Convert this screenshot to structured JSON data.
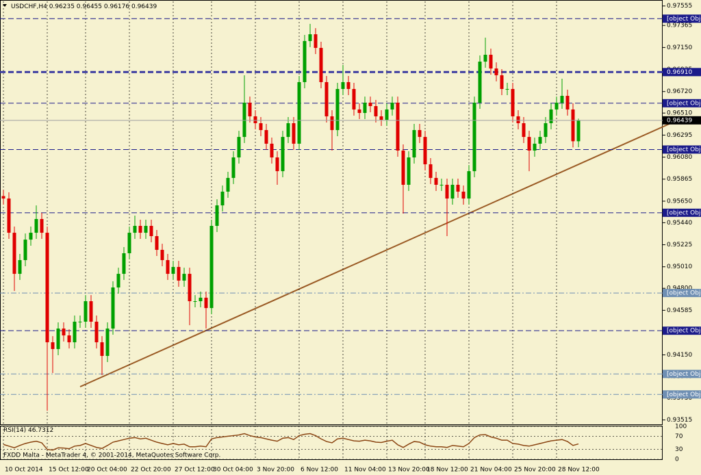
{
  "chart_data": {
    "type": "candlestick",
    "symbol": "USDCHF,H4",
    "categories": [
      "10 Oct 2014",
      null,
      null,
      null,
      null,
      null,
      null,
      null,
      "15 Oct 12:00",
      null,
      null,
      null,
      null,
      null,
      null,
      "20 Oct 04:00",
      null,
      null,
      null,
      null,
      null,
      null,
      null,
      "22 Oct 20:00",
      null,
      null,
      null,
      null,
      null,
      null,
      null,
      "27 Oct 12:00",
      null,
      null,
      null,
      null,
      null,
      null,
      "30 Oct 04:00",
      null,
      null,
      null,
      null,
      null,
      null,
      null,
      "3 Nov 20:00",
      null,
      null,
      null,
      null,
      null,
      null,
      null,
      "6 Nov 12:00",
      null,
      null,
      null,
      null,
      null,
      null,
      null,
      "11 Nov 04:00",
      null,
      null,
      null,
      null,
      null,
      null,
      null,
      "13 Nov 20:00",
      null,
      null,
      null,
      null,
      null,
      null,
      "18 Nov 12:00",
      null,
      null,
      null,
      null,
      null,
      null,
      null,
      "21 Nov 04:00",
      null,
      null,
      null,
      null,
      null,
      null,
      null,
      "25 Nov 20:00",
      null,
      null,
      null,
      null,
      null,
      null,
      null,
      "28 Nov 12:00",
      null,
      null,
      null,
      null
    ],
    "open": [
      0.957,
      0.95676,
      0.95342,
      0.94941,
      0.95075,
      0.95275,
      0.95342,
      0.95476,
      0.95342,
      0.94273,
      0.94207,
      0.94407,
      0.9434,
      0.94273,
      0.94474,
      0.94474,
      0.94674,
      0.94474,
      0.94273,
      0.9414,
      0.94407,
      0.94808,
      0.94941,
      0.95142,
      0.95342,
      0.95409,
      0.95342,
      0.95409,
      0.95309,
      0.95175,
      0.95075,
      0.94941,
      0.95008,
      0.94875,
      0.94941,
      0.94674,
      0.94674,
      0.94708,
      0.94607,
      0.95409,
      0.95609,
      0.95743,
      0.95877,
      0.96077,
      0.96277,
      0.96611,
      0.96478,
      0.96411,
      0.96344,
      0.96211,
      0.96077,
      0.95943,
      0.96277,
      0.96411,
      0.96211,
      0.96812,
      0.97213,
      0.97279,
      0.97146,
      0.96812,
      0.96478,
      0.96344,
      0.96745,
      0.96812,
      0.96745,
      0.96545,
      0.96511,
      0.96611,
      0.96578,
      0.96478,
      0.96444,
      0.96545,
      0.96611,
      0.96144,
      0.9581,
      0.96077,
      0.96344,
      0.96277,
      0.9601,
      0.95877,
      0.9581,
      0.9581,
      0.95676,
      0.9581,
      0.95743,
      0.95676,
      0.95943,
      0.96611,
      0.97012,
      0.97079,
      0.96945,
      0.96879,
      0.96745,
      0.96745,
      0.96478,
      0.96411,
      0.96277,
      0.96144,
      0.96211,
      0.96277,
      0.96411,
      0.96545,
      0.96611,
      0.96678,
      0.96545,
      0.96235
    ],
    "high": [
      0.9576,
      0.95736,
      0.95402,
      0.95135,
      0.95335,
      0.95402,
      0.95609,
      0.95536,
      0.95402,
      0.94333,
      0.94467,
      0.94467,
      0.944,
      0.94534,
      0.94534,
      0.94734,
      0.94734,
      0.94534,
      0.94333,
      0.94467,
      0.94868,
      0.95001,
      0.95202,
      0.95402,
      0.95509,
      0.95469,
      0.95469,
      0.95469,
      0.95369,
      0.95235,
      0.95135,
      0.95068,
      0.95068,
      0.95001,
      0.95001,
      0.94734,
      0.94768,
      0.94768,
      0.95469,
      0.95669,
      0.95803,
      0.95937,
      0.96137,
      0.96337,
      0.96879,
      0.96671,
      0.96538,
      0.96471,
      0.96404,
      0.96271,
      0.96137,
      0.96337,
      0.96471,
      0.96471,
      0.96872,
      0.97273,
      0.9738,
      0.97339,
      0.97206,
      0.96872,
      0.96538,
      0.96805,
      0.96979,
      0.96872,
      0.96805,
      0.96605,
      0.96671,
      0.96671,
      0.96638,
      0.96538,
      0.96605,
      0.96671,
      0.96671,
      0.96204,
      0.96137,
      0.96404,
      0.96404,
      0.96337,
      0.9607,
      0.95937,
      0.9587,
      0.9587,
      0.9587,
      0.9587,
      0.95803,
      0.96003,
      0.96671,
      0.97072,
      0.97246,
      0.97139,
      0.97005,
      0.96939,
      0.96805,
      0.96805,
      0.96538,
      0.96471,
      0.96337,
      0.96271,
      0.96337,
      0.96471,
      0.96605,
      0.96671,
      0.96845,
      0.96738,
      0.96605,
      0.96455
    ],
    "low": [
      0.95616,
      0.95282,
      0.94774,
      0.94881,
      0.95015,
      0.95215,
      0.95282,
      0.95282,
      0.93605,
      0.93973,
      0.94147,
      0.9428,
      0.94213,
      0.94213,
      0.94414,
      0.94414,
      0.94414,
      0.94213,
      0.93953,
      0.9408,
      0.94347,
      0.94748,
      0.94881,
      0.95082,
      0.95282,
      0.95282,
      0.95282,
      0.95249,
      0.95115,
      0.95015,
      0.94881,
      0.94881,
      0.94815,
      0.94815,
      0.9444,
      0.94614,
      0.94614,
      0.94407,
      0.94547,
      0.95349,
      0.95549,
      0.95683,
      0.95817,
      0.96017,
      0.96217,
      0.96418,
      0.96351,
      0.96284,
      0.96151,
      0.96017,
      0.9581,
      0.95883,
      0.96217,
      0.96151,
      0.96151,
      0.96752,
      0.97153,
      0.97086,
      0.96752,
      0.96418,
      0.96144,
      0.96284,
      0.96685,
      0.96685,
      0.96485,
      0.96451,
      0.96451,
      0.96518,
      0.96418,
      0.96384,
      0.96384,
      0.96485,
      0.96084,
      0.95529,
      0.9575,
      0.96017,
      0.96217,
      0.9595,
      0.95817,
      0.9575,
      0.9575,
      0.95309,
      0.95616,
      0.95683,
      0.95616,
      0.95616,
      0.95883,
      0.96551,
      0.96952,
      0.96885,
      0.96819,
      0.96685,
      0.96685,
      0.96418,
      0.96351,
      0.96217,
      0.95943,
      0.96084,
      0.96151,
      0.96217,
      0.96351,
      0.96485,
      0.96551,
      0.96485,
      0.96175,
      0.96176
    ],
    "close": [
      0.95676,
      0.95342,
      0.94941,
      0.95075,
      0.95275,
      0.95342,
      0.95476,
      0.95342,
      0.94273,
      0.94207,
      0.94407,
      0.9434,
      0.94273,
      0.94474,
      0.94474,
      0.94674,
      0.94474,
      0.94273,
      0.9414,
      0.94407,
      0.94808,
      0.94941,
      0.95142,
      0.95342,
      0.95409,
      0.95342,
      0.95409,
      0.95309,
      0.95175,
      0.95075,
      0.94941,
      0.95008,
      0.94875,
      0.94941,
      0.94674,
      0.94674,
      0.94708,
      0.94607,
      0.95409,
      0.95609,
      0.95743,
      0.95877,
      0.96077,
      0.96277,
      0.96611,
      0.96478,
      0.96411,
      0.96344,
      0.96211,
      0.96077,
      0.95943,
      0.96277,
      0.96411,
      0.96211,
      0.96812,
      0.97213,
      0.97279,
      0.97146,
      0.96812,
      0.96478,
      0.96344,
      0.96745,
      0.96812,
      0.96745,
      0.96545,
      0.96511,
      0.96611,
      0.96578,
      0.96478,
      0.96444,
      0.96545,
      0.96611,
      0.96144,
      0.9581,
      0.96077,
      0.96344,
      0.96277,
      0.9601,
      0.95877,
      0.9581,
      0.9581,
      0.95676,
      0.9581,
      0.95743,
      0.95676,
      0.95943,
      0.96611,
      0.97012,
      0.97079,
      0.96945,
      0.96879,
      0.96745,
      0.96745,
      0.96478,
      0.96411,
      0.96277,
      0.96144,
      0.96211,
      0.96277,
      0.96411,
      0.96545,
      0.96611,
      0.96678,
      0.96545,
      0.96235,
      0.96439
    ],
    "up_color": "#00a000",
    "down_color": "#e00000",
    "ylim": [
      0.93472,
      0.976
    ],
    "yticks": [
      0.97555,
      0.97365,
      {
        "value": 0.9715,
        "label": "0.97150"
      },
      0.96935,
      {
        "value": 0.9672,
        "label": "0.96720"
      },
      {
        "value": 0.9651,
        "label": "0.96510"
      },
      0.96295,
      {
        "value": 0.9608,
        "label": "0.96080"
      },
      0.95865,
      {
        "value": 0.9565,
        "label": "0.95650"
      },
      {
        "value": 0.9544,
        "label": "0.95440"
      },
      0.95225,
      {
        "value": 0.9501,
        "label": "0.95010"
      },
      {
        "value": 0.948,
        "label": "0.94800"
      },
      0.94585,
      {
        "value": 0.9437,
        "label": "0.94370"
      },
      {
        "value": 0.9415,
        "label": "0.94150"
      },
      {
        "value": 0.9394,
        "label": "0.93940"
      },
      {
        "value": 0.9373,
        "label": "0.93730"
      },
      0.93515
    ],
    "hlines": [
      {
        "value": 0.97431,
        "style": "dash"
      },
      {
        "value": 0.9691,
        "label": "0.96910",
        "style": "bold"
      },
      {
        "value": 0.96606,
        "style": "dash"
      },
      {
        "value": 0.96154,
        "style": "dash"
      },
      {
        "value": 0.95537,
        "style": "dash"
      },
      {
        "value": 0.94754,
        "style": "dashdot"
      },
      {
        "value": 0.94386,
        "style": "dash"
      },
      {
        "value": 0.93964,
        "style": "dashdot"
      },
      {
        "value": 0.93764,
        "style": "dashdot"
      }
    ],
    "grid": true,
    "rsi": {
      "name": "RSI(14)",
      "color": "#8b4513",
      "ylim": [
        0,
        100
      ],
      "yticks": [
        100,
        70,
        30,
        0
      ],
      "values": [
        45,
        40,
        35,
        42,
        48,
        52,
        55,
        50,
        30,
        28,
        35,
        34,
        32,
        40,
        42,
        48,
        42,
        36,
        33,
        42,
        52,
        56,
        60,
        64,
        66,
        62,
        64,
        58,
        52,
        48,
        44,
        48,
        44,
        46,
        38,
        38,
        40,
        38,
        62,
        66,
        68,
        70,
        72,
        74,
        78,
        72,
        68,
        66,
        62,
        58,
        55,
        64,
        66,
        60,
        72,
        76,
        78,
        72,
        62,
        54,
        50,
        62,
        64,
        60,
        56,
        55,
        58,
        56,
        52,
        51,
        55,
        58,
        44,
        36,
        46,
        54,
        52,
        44,
        40,
        38,
        38,
        36,
        42,
        40,
        38,
        48,
        66,
        74,
        75,
        68,
        64,
        58,
        58,
        48,
        46,
        42,
        40,
        44,
        48,
        52,
        56,
        58,
        60,
        54,
        42,
        46.7312
      ]
    },
    "footer": "FXDD Malta - MetaTrader 4, © 2001-2014, MetaQuotes Software Corp."
  }
}
